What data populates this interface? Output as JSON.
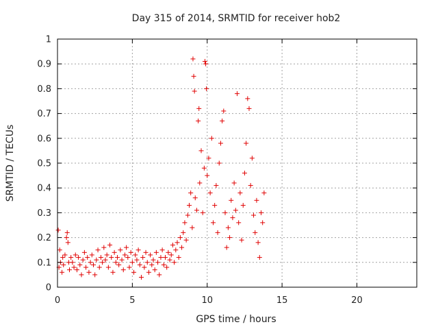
{
  "chart_data": {
    "type": "scatter",
    "title": "Day 315 of 2014, SRMTID for receiver hob2",
    "xlabel": "GPS time / hours",
    "ylabel": "SRMTID / TECUs",
    "xlim": [
      0,
      24
    ],
    "ylim": [
      0,
      1
    ],
    "xticks": [
      0,
      5,
      10,
      15,
      20
    ],
    "xtick_labels": [
      "0",
      "5",
      "10",
      "15",
      "20"
    ],
    "yticks": [
      0,
      0.1,
      0.2,
      0.3,
      0.4,
      0.5,
      0.6,
      0.7,
      0.8,
      0.9,
      1
    ],
    "ytick_labels": [
      "0",
      "0.1",
      "0.2",
      "0.3",
      "0.4",
      "0.5",
      "0.6",
      "0.7",
      "0.8",
      "0.9",
      "1"
    ],
    "grid": true,
    "marker": "+",
    "color": "#e00000",
    "series": [
      {
        "name": "SRMTID hob2",
        "points": [
          [
            0.05,
            0.23
          ],
          [
            0.1,
            0.08
          ],
          [
            0.15,
            0.15
          ],
          [
            0.2,
            0.1
          ],
          [
            0.3,
            0.06
          ],
          [
            0.35,
            0.12
          ],
          [
            0.4,
            0.09
          ],
          [
            0.5,
            0.13
          ],
          [
            0.6,
            0.2
          ],
          [
            0.65,
            0.22
          ],
          [
            0.7,
            0.18
          ],
          [
            0.75,
            0.1
          ],
          [
            0.8,
            0.07
          ],
          [
            0.9,
            0.12
          ],
          [
            1.0,
            0.1
          ],
          [
            1.1,
            0.08
          ],
          [
            1.2,
            0.13
          ],
          [
            1.3,
            0.07
          ],
          [
            1.4,
            0.12
          ],
          [
            1.5,
            0.09
          ],
          [
            1.6,
            0.05
          ],
          [
            1.7,
            0.11
          ],
          [
            1.8,
            0.14
          ],
          [
            1.9,
            0.08
          ],
          [
            2.0,
            0.12
          ],
          [
            2.1,
            0.06
          ],
          [
            2.2,
            0.1
          ],
          [
            2.3,
            0.13
          ],
          [
            2.4,
            0.09
          ],
          [
            2.5,
            0.05
          ],
          [
            2.6,
            0.11
          ],
          [
            2.7,
            0.15
          ],
          [
            2.8,
            0.08
          ],
          [
            2.9,
            0.12
          ],
          [
            3.0,
            0.1
          ],
          [
            3.1,
            0.16
          ],
          [
            3.2,
            0.11
          ],
          [
            3.3,
            0.13
          ],
          [
            3.4,
            0.08
          ],
          [
            3.5,
            0.17
          ],
          [
            3.6,
            0.12
          ],
          [
            3.7,
            0.06
          ],
          [
            3.8,
            0.14
          ],
          [
            3.9,
            0.1
          ],
          [
            4.0,
            0.12
          ],
          [
            4.1,
            0.09
          ],
          [
            4.2,
            0.15
          ],
          [
            4.3,
            0.11
          ],
          [
            4.4,
            0.07
          ],
          [
            4.5,
            0.13
          ],
          [
            4.6,
            0.16
          ],
          [
            4.7,
            0.12
          ],
          [
            4.8,
            0.08
          ],
          [
            4.9,
            0.14
          ],
          [
            5.0,
            0.1
          ],
          [
            5.1,
            0.06
          ],
          [
            5.2,
            0.13
          ],
          [
            5.3,
            0.11
          ],
          [
            5.4,
            0.15
          ],
          [
            5.5,
            0.09
          ],
          [
            5.6,
            0.04
          ],
          [
            5.7,
            0.12
          ],
          [
            5.8,
            0.08
          ],
          [
            5.9,
            0.14
          ],
          [
            6.0,
            0.1
          ],
          [
            6.1,
            0.06
          ],
          [
            6.2,
            0.13
          ],
          [
            6.3,
            0.09
          ],
          [
            6.4,
            0.11
          ],
          [
            6.5,
            0.07
          ],
          [
            6.6,
            0.14
          ],
          [
            6.7,
            0.1
          ],
          [
            6.8,
            0.05
          ],
          [
            6.9,
            0.12
          ],
          [
            7.0,
            0.15
          ],
          [
            7.1,
            0.09
          ],
          [
            7.2,
            0.12
          ],
          [
            7.3,
            0.08
          ],
          [
            7.4,
            0.14
          ],
          [
            7.5,
            0.11
          ],
          [
            7.6,
            0.13
          ],
          [
            7.7,
            0.17
          ],
          [
            7.8,
            0.1
          ],
          [
            7.9,
            0.15
          ],
          [
            8.0,
            0.18
          ],
          [
            8.1,
            0.12
          ],
          [
            8.2,
            0.2
          ],
          [
            8.3,
            0.16
          ],
          [
            8.4,
            0.22
          ],
          [
            8.5,
            0.26
          ],
          [
            8.6,
            0.19
          ],
          [
            8.7,
            0.29
          ],
          [
            8.8,
            0.33
          ],
          [
            8.9,
            0.38
          ],
          [
            9.0,
            0.24
          ],
          [
            9.05,
            0.92
          ],
          [
            9.1,
            0.85
          ],
          [
            9.15,
            0.79
          ],
          [
            9.2,
            0.36
          ],
          [
            9.3,
            0.31
          ],
          [
            9.4,
            0.67
          ],
          [
            9.45,
            0.72
          ],
          [
            9.5,
            0.42
          ],
          [
            9.6,
            0.55
          ],
          [
            9.7,
            0.3
          ],
          [
            9.8,
            0.48
          ],
          [
            9.85,
            0.91
          ],
          [
            9.9,
            0.9
          ],
          [
            9.95,
            0.8
          ],
          [
            10.0,
            0.45
          ],
          [
            10.1,
            0.52
          ],
          [
            10.2,
            0.38
          ],
          [
            10.3,
            0.6
          ],
          [
            10.4,
            0.26
          ],
          [
            10.5,
            0.33
          ],
          [
            10.6,
            0.41
          ],
          [
            10.7,
            0.22
          ],
          [
            10.8,
            0.5
          ],
          [
            10.9,
            0.58
          ],
          [
            11.0,
            0.67
          ],
          [
            11.1,
            0.71
          ],
          [
            11.2,
            0.3
          ],
          [
            11.3,
            0.16
          ],
          [
            11.4,
            0.24
          ],
          [
            11.5,
            0.2
          ],
          [
            11.6,
            0.35
          ],
          [
            11.7,
            0.28
          ],
          [
            11.8,
            0.42
          ],
          [
            11.9,
            0.31
          ],
          [
            12.0,
            0.78
          ],
          [
            12.1,
            0.26
          ],
          [
            12.2,
            0.38
          ],
          [
            12.3,
            0.19
          ],
          [
            12.4,
            0.33
          ],
          [
            12.5,
            0.46
          ],
          [
            12.6,
            0.58
          ],
          [
            12.7,
            0.76
          ],
          [
            12.8,
            0.72
          ],
          [
            12.9,
            0.41
          ],
          [
            13.0,
            0.52
          ],
          [
            13.1,
            0.29
          ],
          [
            13.2,
            0.22
          ],
          [
            13.3,
            0.35
          ],
          [
            13.4,
            0.18
          ],
          [
            13.5,
            0.12
          ],
          [
            13.6,
            0.3
          ],
          [
            13.7,
            0.26
          ],
          [
            13.8,
            0.38
          ]
        ]
      }
    ]
  }
}
